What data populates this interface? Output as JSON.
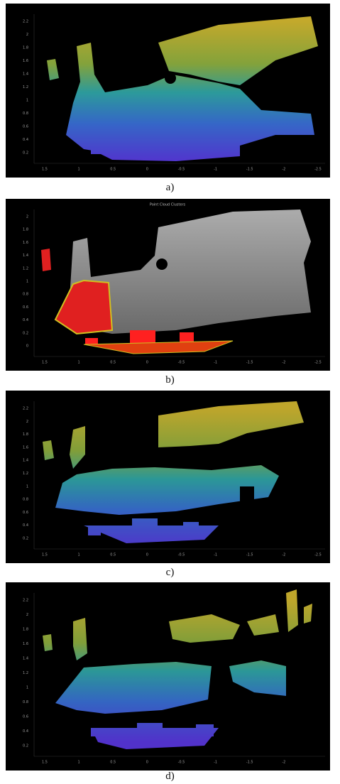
{
  "panels": [
    {
      "caption": "a)",
      "yticks": [
        2.2,
        2,
        1.8,
        1.6,
        1.4,
        1.2,
        1,
        0.8,
        0.6,
        0.4,
        0.2
      ],
      "xticks": [
        1.5,
        1,
        0.5,
        0,
        -0.5,
        -1,
        -1.5,
        -2,
        -2.5
      ]
    },
    {
      "caption": "b)",
      "title": "Point Cloud Clusters",
      "yticks": [
        2,
        1.8,
        1.6,
        1.4,
        1.2,
        1,
        0.8,
        0.6,
        0.4,
        0.2,
        0
      ],
      "xticks": [
        1.5,
        1,
        0.5,
        0,
        -0.5,
        -1,
        -1.5,
        -2,
        -2.5
      ]
    },
    {
      "caption": "c)",
      "yticks": [
        2.2,
        2,
        1.8,
        1.6,
        1.4,
        1.2,
        1,
        0.8,
        0.6,
        0.4,
        0.2
      ],
      "xticks": [
        1.5,
        1,
        0.5,
        0,
        -0.5,
        -1,
        -1.5,
        -2,
        -2.5
      ]
    },
    {
      "caption": "d)",
      "yticks": [
        2.2,
        2,
        1.8,
        1.6,
        1.4,
        1.2,
        1,
        0.8,
        0.6,
        0.4,
        0.2
      ],
      "xticks": [
        1.5,
        1,
        0.5,
        0,
        -0.5,
        -1,
        -1.5,
        -2
      ]
    }
  ]
}
